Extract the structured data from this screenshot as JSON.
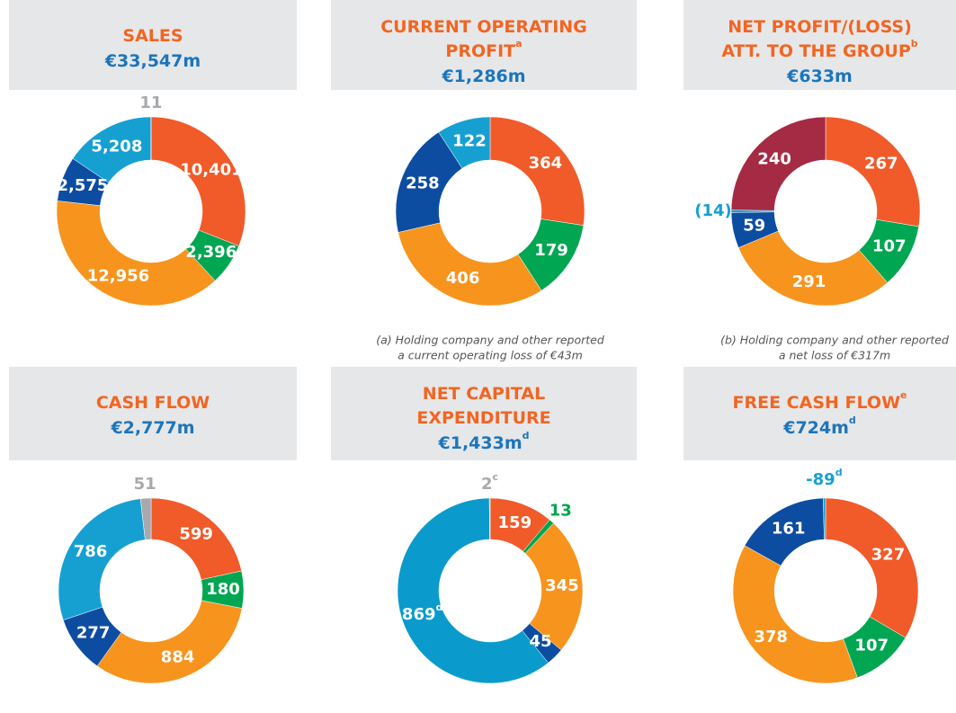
{
  "chart_data": [
    {
      "type": "pie",
      "donut": true,
      "title": [
        "SALES"
      ],
      "subtitle": "€33,547m",
      "values": [
        10401,
        2396,
        12956,
        2575,
        5208,
        11
      ],
      "value_labels": [
        "10,401",
        "2,396",
        "12,956",
        "2,575",
        "5,208",
        "11"
      ],
      "colors": [
        "#f15a29",
        "#00a651",
        "#f7941d",
        "#0d4da1",
        "#16a0d2",
        "#a7a9ac"
      ]
    },
    {
      "type": "pie",
      "donut": true,
      "title": [
        "CURRENT OPERATING",
        "PROFIT"
      ],
      "title_sup": "a",
      "subtitle": "€1,286m",
      "values": [
        364,
        179,
        406,
        258,
        122
      ],
      "colors": [
        "#f15a29",
        "#00a651",
        "#f7941d",
        "#0d4da1",
        "#16a0d2"
      ],
      "note": [
        "(a) Holding company and other reported",
        "a current operating loss of €43m"
      ]
    },
    {
      "type": "pie",
      "donut": true,
      "title": [
        "NET PROFIT/(LOSS)",
        "ATT. TO THE GROUP"
      ],
      "title_sup": "b",
      "subtitle": "€633m",
      "values": [
        267,
        107,
        291,
        59,
        -14,
        240
      ],
      "value_labels": [
        "267",
        "107",
        "291",
        "59",
        "(14)",
        "240"
      ],
      "colors": [
        "#f15a29",
        "#00a651",
        "#f7941d",
        "#0d4da1",
        "#16a0d2",
        "#a52a43"
      ],
      "note": [
        "(b) Holding company and other reported",
        "a net loss of €317m"
      ]
    },
    {
      "type": "pie",
      "donut": true,
      "title": [
        "CASH FLOW"
      ],
      "subtitle": "€2,777m",
      "values": [
        599,
        180,
        884,
        277,
        786,
        51
      ],
      "colors": [
        "#f15a29",
        "#00a651",
        "#f7941d",
        "#0d4da1",
        "#16a0d2",
        "#a7a9ac"
      ]
    },
    {
      "type": "pie",
      "donut": true,
      "title": [
        "NET CAPITAL",
        "EXPENDITURE"
      ],
      "subtitle": "€1,433m",
      "subtitle_sup": "d",
      "values": [
        159,
        13,
        345,
        45,
        869,
        2
      ],
      "value_label_sups": [
        null,
        null,
        null,
        null,
        "d",
        "c"
      ],
      "colors": [
        "#f15a29",
        "#00a651",
        "#f7941d",
        "#0d4da1",
        "#0a9bcc",
        "#a7a9ac"
      ]
    },
    {
      "type": "pie",
      "donut": true,
      "title": [
        "FREE CASH FLOW"
      ],
      "title_sup": "e",
      "subtitle": "€724m",
      "subtitle_sup": "d",
      "values": [
        327,
        107,
        378,
        161,
        -89
      ],
      "value_label_sups": [
        null,
        null,
        null,
        null,
        "d"
      ],
      "colors": [
        "#f15a29",
        "#00a651",
        "#f7941d",
        "#0d4da1",
        "#16a0d2"
      ]
    }
  ]
}
